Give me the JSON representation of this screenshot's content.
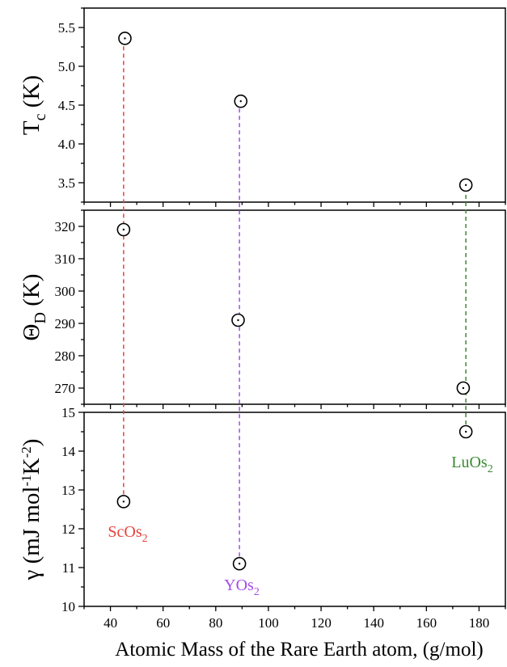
{
  "chart_data": {
    "type": "scatter",
    "xlabel": "Atomic Mass of the Rare Earth atom, (g/mol)",
    "xlim": [
      30,
      190
    ],
    "xticks": [
      40,
      60,
      80,
      100,
      120,
      140,
      160,
      180
    ],
    "compounds": [
      {
        "label": "ScOs",
        "subscript": "2",
        "x": 45,
        "color": "#e8413c"
      },
      {
        "label": "YOs",
        "subscript": "2",
        "x": 89,
        "color": "#a34dea"
      },
      {
        "label": "LuOs",
        "subscript": "2",
        "x": 175,
        "color": "#3a8b32"
      }
    ],
    "panels": [
      {
        "ylabel": "T",
        "ylabel_sub": "c",
        "ylabel_suffix": " (K)",
        "ylim": [
          3.25,
          5.75
        ],
        "yticks": [
          "3.5",
          "4.0",
          "4.5",
          "5.0",
          "5.5"
        ],
        "points": [
          {
            "x": 45.5,
            "y": 5.36
          },
          {
            "x": 89.5,
            "y": 4.55
          },
          {
            "x": 175,
            "y": 3.47
          }
        ]
      },
      {
        "ylabel": "Θ",
        "ylabel_sub": "D",
        "ylabel_suffix": " (K)",
        "ylim": [
          265,
          325
        ],
        "yticks": [
          "270",
          "280",
          "290",
          "300",
          "310",
          "320"
        ],
        "points": [
          {
            "x": 45,
            "y": 319
          },
          {
            "x": 88.5,
            "y": 291
          },
          {
            "x": 174,
            "y": 270
          }
        ]
      },
      {
        "ylabel": "γ (mJ mol",
        "ylabel_sup1": "-1",
        "ylabel_mid": "K",
        "ylabel_sup2": "-2",
        "ylabel_suffix": ")",
        "ylim": [
          10,
          15
        ],
        "yticks": [
          "10",
          "11",
          "12",
          "13",
          "14",
          "15"
        ],
        "points": [
          {
            "x": 45,
            "y": 12.7
          },
          {
            "x": 89,
            "y": 11.1
          },
          {
            "x": 175,
            "y": 14.5
          }
        ]
      }
    ],
    "vlines": [
      {
        "x": 45,
        "color": "#e8413c",
        "from_y": 12.7,
        "to_top_y": 5.36
      },
      {
        "x": 89,
        "color": "#a34dea",
        "from_y": 11.1,
        "to_top_y": 4.55
      },
      {
        "x": 175,
        "color": "#3a8b32",
        "from_y": 14.5,
        "to_top_y": 3.47
      }
    ]
  }
}
